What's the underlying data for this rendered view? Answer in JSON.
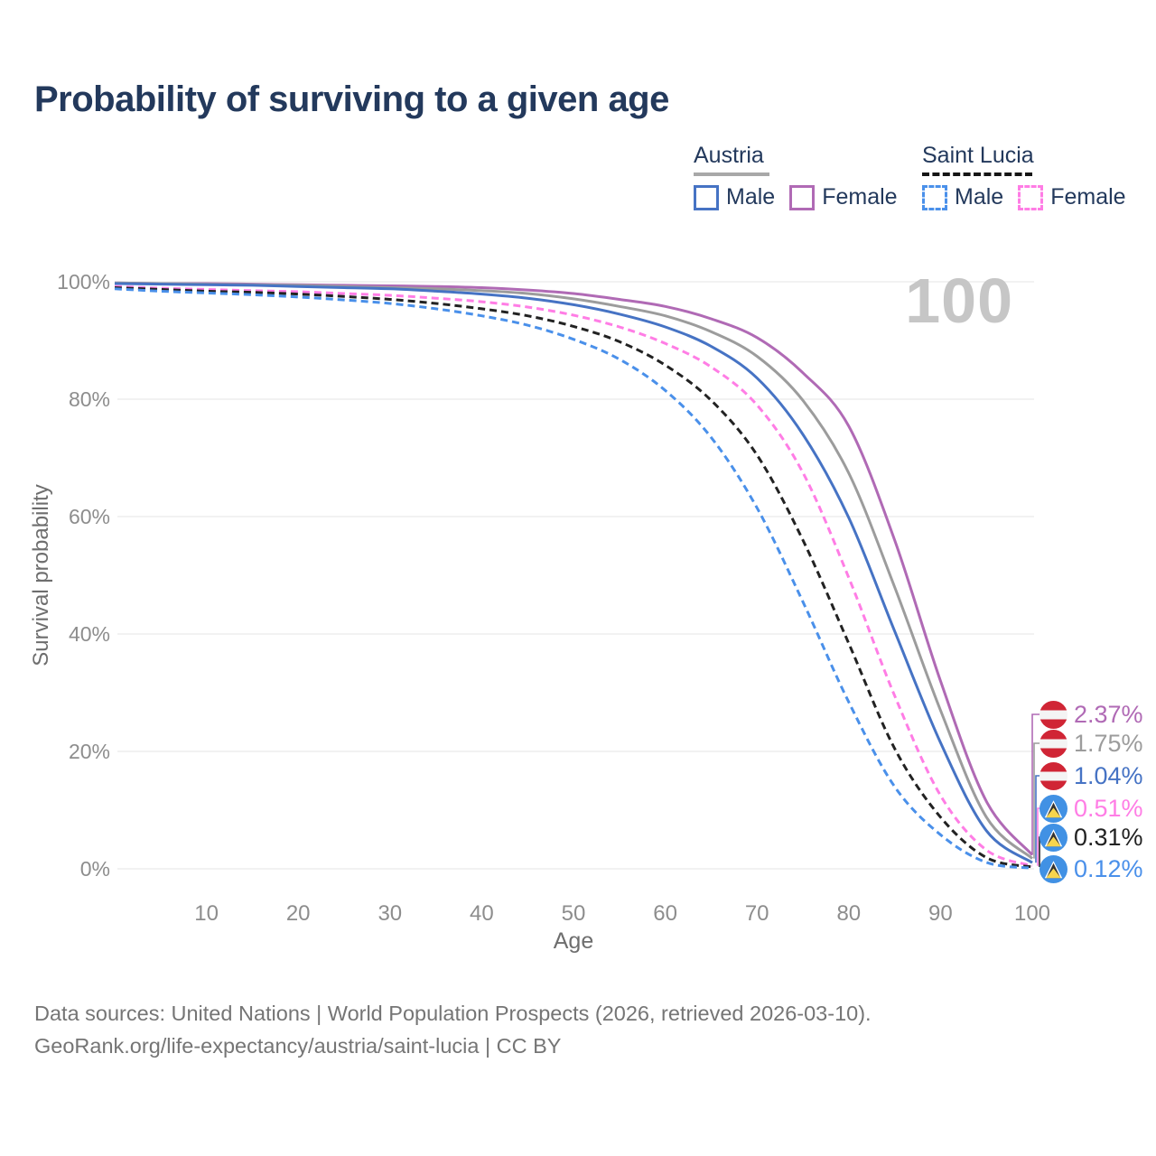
{
  "title": "Probability of surviving to a given age",
  "watermark_age": "100",
  "legend": {
    "groups": [
      {
        "label": "Austria",
        "line_style": "solid",
        "underline_color": "#a8a8a8",
        "items": [
          {
            "label": "Male",
            "color": "#4673c4"
          },
          {
            "label": "Female",
            "color": "#b06ab5"
          }
        ]
      },
      {
        "label": "Saint Lucia",
        "line_style": "dashed",
        "underline_color": "#151515",
        "items": [
          {
            "label": "Male",
            "color": "#4a90ea"
          },
          {
            "label": "Female",
            "color": "#ff7de5"
          }
        ]
      }
    ]
  },
  "chart_data": {
    "type": "line",
    "title": "Probability of surviving to a given age",
    "xlabel": "Age",
    "ylabel": "Survival probability",
    "xlim": [
      0,
      100
    ],
    "ylim": [
      0,
      100
    ],
    "grid": true,
    "legend_position": "top-right",
    "x_tick_labels": [
      "10",
      "20",
      "30",
      "40",
      "50",
      "60",
      "70",
      "80",
      "90",
      "100"
    ],
    "x_tick_values": [
      10,
      20,
      30,
      40,
      50,
      60,
      70,
      80,
      90,
      100
    ],
    "y_tick_labels": [
      "0%",
      "20%",
      "40%",
      "60%",
      "80%",
      "100%"
    ],
    "y_tick_values": [
      0,
      20,
      40,
      60,
      80,
      100
    ],
    "x": [
      0,
      5,
      10,
      15,
      20,
      25,
      30,
      35,
      40,
      45,
      50,
      55,
      60,
      65,
      70,
      75,
      80,
      85,
      90,
      95,
      100
    ],
    "series": [
      {
        "name": "Austria Female",
        "color": "#b06ab5",
        "dashed": false,
        "flag": "austria",
        "end_label": "2.37%",
        "values": [
          99.8,
          99.7,
          99.7,
          99.6,
          99.5,
          99.4,
          99.3,
          99.2,
          99.0,
          98.6,
          98.0,
          97.0,
          95.8,
          93.7,
          90.5,
          84.5,
          75.4,
          56.0,
          32.0,
          11.5,
          2.37
        ]
      },
      {
        "name": "Austria Both sexes",
        "color": "#9c9c9c",
        "dashed": false,
        "flag": "austria",
        "end_label": "1.75%",
        "values": [
          99.8,
          99.7,
          99.6,
          99.5,
          99.4,
          99.2,
          99.0,
          98.8,
          98.5,
          98.0,
          97.1,
          95.8,
          94.2,
          91.5,
          87.3,
          79.8,
          67.4,
          48.0,
          27.0,
          8.8,
          1.75
        ]
      },
      {
        "name": "Austria Male",
        "color": "#4673c4",
        "dashed": false,
        "flag": "austria",
        "end_label": "1.04%",
        "values": [
          99.7,
          99.6,
          99.5,
          99.4,
          99.2,
          99.0,
          98.8,
          98.4,
          97.9,
          97.2,
          96.1,
          94.5,
          92.3,
          89.0,
          83.6,
          74.0,
          59.8,
          40.5,
          21.5,
          6.5,
          1.04
        ]
      },
      {
        "name": "Saint Lucia Female",
        "color": "#ff7de5",
        "dashed": true,
        "flag": "saint-lucia",
        "end_label": "0.51%",
        "values": [
          99.2,
          98.9,
          98.7,
          98.5,
          98.3,
          98.0,
          97.7,
          97.2,
          96.6,
          95.7,
          94.3,
          92.3,
          89.5,
          85.5,
          79.0,
          67.5,
          49.6,
          29.5,
          12.5,
          3.2,
          0.51
        ]
      },
      {
        "name": "Saint Lucia Both sexes",
        "color": "#222222",
        "dashed": true,
        "flag": "saint-lucia",
        "end_label": "0.31%",
        "values": [
          99.0,
          98.7,
          98.4,
          98.2,
          97.9,
          97.5,
          97.0,
          96.3,
          95.4,
          94.2,
          92.4,
          89.8,
          85.8,
          79.8,
          70.5,
          56.0,
          38.4,
          20.5,
          8.8,
          1.9,
          0.31
        ]
      },
      {
        "name": "Saint Lucia Male",
        "color": "#4a90ea",
        "dashed": true,
        "flag": "saint-lucia",
        "end_label": "0.12%",
        "values": [
          98.8,
          98.4,
          98.1,
          97.8,
          97.4,
          96.9,
          96.3,
          95.4,
          94.2,
          92.6,
          90.2,
          86.8,
          81.5,
          73.5,
          61.5,
          45.5,
          28.4,
          14.0,
          5.8,
          1.1,
          0.12
        ]
      }
    ]
  },
  "flags": {
    "austria": {
      "red": "#d02535",
      "white": "#f4f4f4"
    },
    "saint_lucia": {
      "blue": "#4191e4",
      "yellow": "#f8d44c",
      "black": "#333333",
      "white": "#ffffff"
    }
  },
  "colors": {
    "title": "#23395c",
    "legend_text": "#23395c",
    "tick_text": "#8d8d8d",
    "axis_title": "#6e6e6e",
    "grid": "#e9e9e9",
    "watermark": "#c6c6c6",
    "footer": "#757575",
    "background": "#ffffff"
  },
  "footer": {
    "line1": "Data sources: United Nations | World Population Prospects (2026, retrieved 2026-03-10).",
    "line2": "GeoRank.org/life-expectancy/austria/saint-lucia | CC BY"
  }
}
